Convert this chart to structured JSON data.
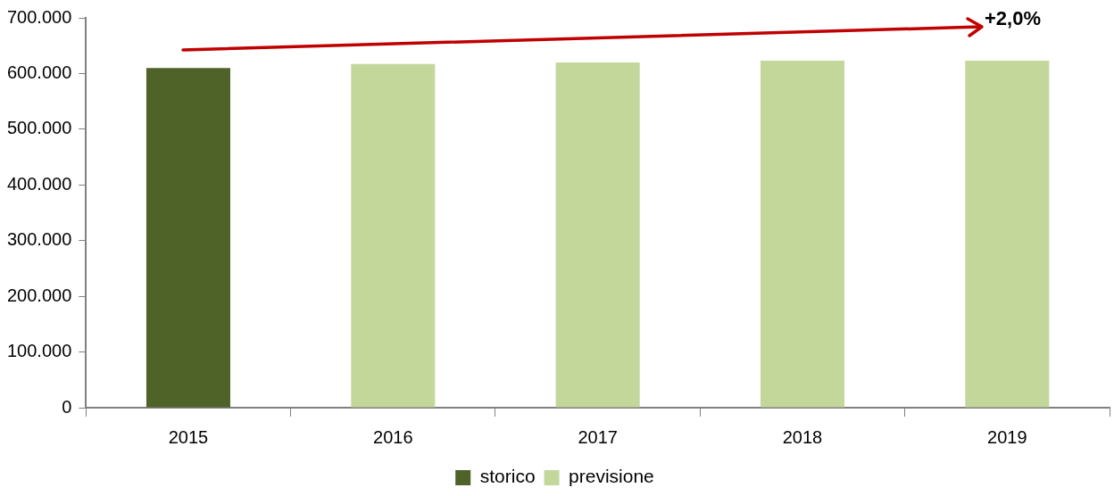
{
  "chart_data": {
    "type": "bar",
    "categories": [
      "2015",
      "2016",
      "2017",
      "2018",
      "2019"
    ],
    "series": [
      {
        "name": "storico",
        "color": "#4f6228",
        "values": [
          610000,
          null,
          null,
          null,
          null
        ]
      },
      {
        "name": "previsione",
        "color": "#c4d79b",
        "values": [
          null,
          617000,
          620000,
          623000,
          623000
        ]
      }
    ],
    "ylim": [
      0,
      700000
    ],
    "yticks": [
      0,
      {
        "value": 100000,
        "label": "100.000"
      },
      {
        "value": 200000,
        "label": "200.000"
      },
      {
        "value": 300000,
        "label": "300.000"
      },
      {
        "value": 400000,
        "label": "400.000"
      },
      {
        "value": 500000,
        "label": "500.000"
      },
      {
        "value": 600000,
        "label": "600.000"
      },
      {
        "value": 700000,
        "label": "700.000"
      }
    ],
    "annotations": [
      "+2,0%"
    ],
    "grid": false,
    "legend": "bottom"
  }
}
